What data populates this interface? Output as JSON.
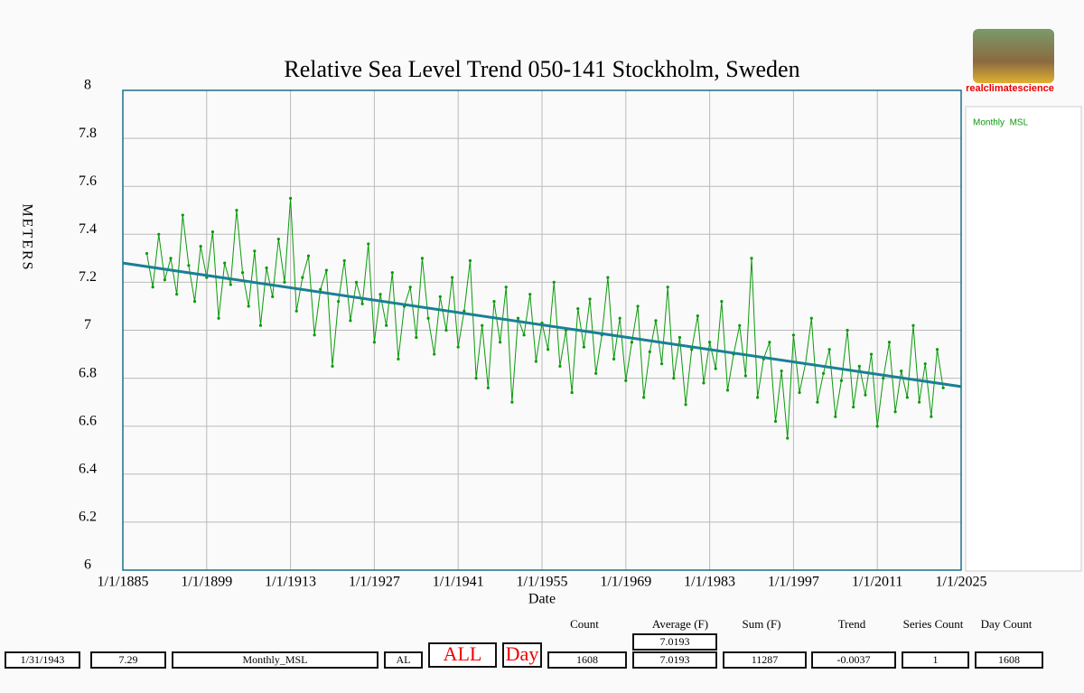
{
  "chart_data": {
    "type": "line",
    "title": "Relative Sea Level Trend 050-141 Stockholm, Sweden",
    "x_label": "Date",
    "y_label": "METERS",
    "xlim": [
      1885,
      2025
    ],
    "xticks": [
      {
        "value": 1885,
        "label": "1/1/1885"
      },
      {
        "value": 1899,
        "label": "1/1/1899"
      },
      {
        "value": 1913,
        "label": "1/1/1913"
      },
      {
        "value": 1927,
        "label": "1/1/1927"
      },
      {
        "value": 1941,
        "label": "1/1/1941"
      },
      {
        "value": 1955,
        "label": "1/1/1955"
      },
      {
        "value": 1969,
        "label": "1/1/1969"
      },
      {
        "value": 1983,
        "label": "1/1/1983"
      },
      {
        "value": 1997,
        "label": "1/1/1997"
      },
      {
        "value": 2011,
        "label": "1/1/2011"
      },
      {
        "value": 2025,
        "label": "1/1/2025"
      }
    ],
    "ylim": [
      6,
      8
    ],
    "yticks": [
      6,
      6.2,
      6.4,
      6.6,
      6.8,
      7,
      7.2,
      7.4,
      7.6,
      7.8,
      8
    ],
    "grid": true,
    "legend": "right",
    "x": [
      1889,
      1890,
      1891,
      1892,
      1893,
      1894,
      1895,
      1896,
      1897,
      1898,
      1899,
      1900,
      1901,
      1902,
      1903,
      1904,
      1905,
      1906,
      1907,
      1908,
      1909,
      1910,
      1911,
      1912,
      1913,
      1914,
      1915,
      1916,
      1917,
      1918,
      1919,
      1920,
      1921,
      1922,
      1923,
      1924,
      1925,
      1926,
      1927,
      1928,
      1929,
      1930,
      1931,
      1932,
      1933,
      1934,
      1935,
      1936,
      1937,
      1938,
      1939,
      1940,
      1941,
      1942,
      1943,
      1944,
      1945,
      1946,
      1947,
      1948,
      1949,
      1950,
      1951,
      1952,
      1953,
      1954,
      1955,
      1956,
      1957,
      1958,
      1959,
      1960,
      1961,
      1962,
      1963,
      1964,
      1965,
      1966,
      1967,
      1968,
      1969,
      1970,
      1971,
      1972,
      1973,
      1974,
      1975,
      1976,
      1977,
      1978,
      1979,
      1980,
      1981,
      1982,
      1983,
      1984,
      1985,
      1986,
      1987,
      1988,
      1989,
      1990,
      1991,
      1992,
      1993,
      1994,
      1995,
      1996,
      1997,
      1998,
      1999,
      2000,
      2001,
      2002,
      2003,
      2004,
      2005,
      2006,
      2007,
      2008,
      2009,
      2010,
      2011,
      2012,
      2013,
      2014,
      2015,
      2016,
      2017,
      2018,
      2019,
      2020,
      2021,
      2022
    ],
    "series": [
      {
        "name": "Monthly  MSL",
        "color": "#0a9a0a",
        "values": [
          7.32,
          7.18,
          7.4,
          7.21,
          7.3,
          7.15,
          7.48,
          7.27,
          7.12,
          7.35,
          7.22,
          7.41,
          7.05,
          7.28,
          7.19,
          7.5,
          7.24,
          7.1,
          7.33,
          7.02,
          7.26,
          7.14,
          7.38,
          7.2,
          7.55,
          7.08,
          7.22,
          7.31,
          6.98,
          7.17,
          7.25,
          6.85,
          7.12,
          7.29,
          7.04,
          7.2,
          7.11,
          7.36,
          6.95,
          7.15,
          7.02,
          7.24,
          6.88,
          7.1,
          7.18,
          6.97,
          7.3,
          7.05,
          6.9,
          7.14,
          7.0,
          7.22,
          6.93,
          7.08,
          7.29,
          6.8,
          7.02,
          6.76,
          7.12,
          6.95,
          7.18,
          6.7,
          7.05,
          6.98,
          7.15,
          6.87,
          7.03,
          6.92,
          7.2,
          6.85,
          7.0,
          6.74,
          7.09,
          6.93,
          7.13,
          6.82,
          6.98,
          7.22,
          6.88,
          7.05,
          6.79,
          6.95,
          7.1,
          6.72,
          6.91,
          7.04,
          6.86,
          7.18,
          6.8,
          6.97,
          6.69,
          6.92,
          7.06,
          6.78,
          6.95,
          6.84,
          7.12,
          6.75,
          6.9,
          7.02,
          6.81,
          7.3,
          6.72,
          6.88,
          6.95,
          6.62,
          6.83,
          6.55,
          6.98,
          6.74,
          6.86,
          7.05,
          6.7,
          6.82,
          6.92,
          6.64,
          6.79,
          7.0,
          6.68,
          6.85,
          6.73,
          6.9,
          6.6,
          6.8,
          6.95,
          6.66,
          6.83,
          6.72,
          7.02,
          6.7,
          6.86,
          6.64,
          6.92,
          6.76
        ]
      }
    ],
    "trend_line": {
      "color": "#1a7f95",
      "x": [
        1885,
        2025
      ],
      "values": [
        7.28,
        6.765
      ]
    }
  },
  "logo": {
    "text": "realclimatescience"
  },
  "status_bar": {
    "headers": [
      "Count",
      "Average (F)",
      "Sum (F)",
      "Trend",
      "Series Count",
      "Day Count"
    ],
    "average_box": "7.0193",
    "fields": [
      "1/31/1943",
      "7.29",
      "Monthly_MSL",
      "AL",
      "ALL",
      "Day",
      "1608",
      "7.0193",
      "11287",
      "-0.0037",
      "1",
      "1608"
    ]
  }
}
